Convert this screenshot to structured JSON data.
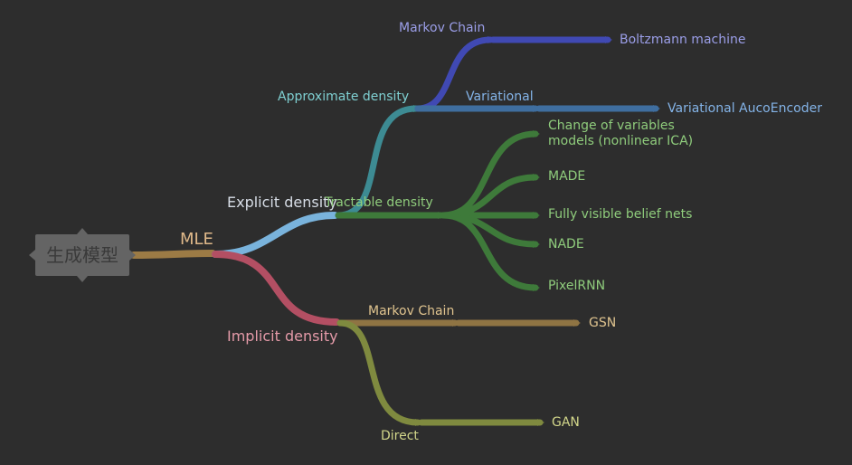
{
  "root": {
    "label": "生成模型"
  },
  "colors": {
    "background": "#2d2d2d",
    "root_fill": "#646464",
    "root_text": "#3a3a3a",
    "mle": "#9c7b45",
    "explicit": "#79b3dc",
    "implicit": "#b34f63",
    "approximate": "#3d8b93",
    "markov_upper": "#4049b3",
    "variational": "#3f6e9f",
    "tractable": "#3e7a3a",
    "implicit_markov": "#8f7443",
    "direct": "#7f8a3f"
  },
  "nodes": {
    "mle": {
      "label": "MLE",
      "color": "#e0b98a"
    },
    "explicit": {
      "label": "Explicit density",
      "color": "#d7dde6"
    },
    "implicit": {
      "label": "Implicit density",
      "color": "#e49aa8"
    },
    "approximate": {
      "label": "Approximate density",
      "color": "#7fd0d2"
    },
    "markov_chain_upper": {
      "label": "Markov Chain",
      "color": "#9b9ee8"
    },
    "boltzmann": {
      "label": "Boltzmann machine",
      "color": "#9b9ee8"
    },
    "variational": {
      "label": "Variational",
      "color": "#84b4e8"
    },
    "vae": {
      "label": "Variational AucoEncoder",
      "color": "#84b4e8"
    },
    "tractable": {
      "label": "Tractable density",
      "color": "#8fcc7c"
    },
    "change_of_variables": {
      "label_line1": "Change of variables",
      "label_line2": "models (nonlinear ICA)",
      "color": "#8fcc7c"
    },
    "made": {
      "label": "MADE",
      "color": "#8fcc7c"
    },
    "fvbn": {
      "label": "Fully visible belief nets",
      "color": "#8fcc7c"
    },
    "nade": {
      "label": "NADE",
      "color": "#8fcc7c"
    },
    "pixelrnn": {
      "label": "PixelRNN",
      "color": "#8fcc7c"
    },
    "markov_chain_lower": {
      "label": "Markov Chain",
      "color": "#e0c48f"
    },
    "gsn": {
      "label": "GSN",
      "color": "#e0c48f"
    },
    "direct": {
      "label": "Direct",
      "color": "#d2d68a"
    },
    "gan": {
      "label": "GAN",
      "color": "#d2d68a"
    }
  }
}
